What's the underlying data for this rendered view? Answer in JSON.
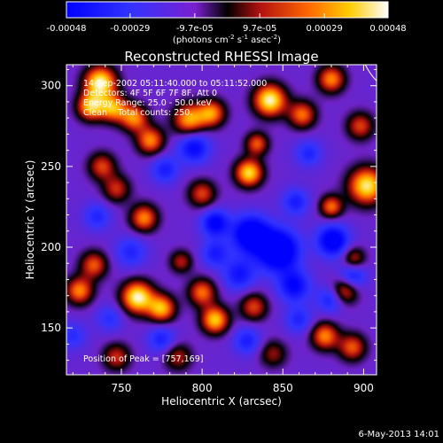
{
  "chart_data": {
    "type": "heatmap",
    "title": "Reconstructed RHESSI Image",
    "xlabel": "Heliocentric X (arcsec)",
    "ylabel": "Heliocentric Y (arcsec)",
    "xlim": [
      716,
      908
    ],
    "ylim": [
      121,
      313
    ],
    "xticks": [
      750,
      800,
      850,
      900
    ],
    "yticks": [
      150,
      200,
      250,
      300
    ],
    "colorbar": {
      "min": -0.00048,
      "max": 0.00048,
      "ticks": [
        -0.00048,
        -0.00029,
        -9.7e-05,
        9.7e-05,
        0.00029,
        0.00048
      ],
      "tick_labels": [
        "-0.00048",
        "-0.00029",
        "-9.7e-05",
        "9.7e-05",
        "0.00029",
        "0.00048"
      ],
      "unit_parts": [
        "(photons cm",
        "-2",
        " s",
        "-1",
        " asec",
        "-2",
        ")"
      ]
    },
    "info_lines": [
      "14-Sep-2002 05:11:40.000 to 05:11:52.000",
      "Detectors: 4F 5F 6F 7F 8F, Att 0",
      "Energy Range: 25.0 - 50.0 keV",
      "Clean    Total counts: 250."
    ],
    "peak_label": "Position of Peak = [757,169]",
    "peak": [
      757,
      169
    ],
    "blobs": [
      {
        "x": 737,
        "y": 302,
        "v": 1.0,
        "s": 7
      },
      {
        "x": 731,
        "y": 287,
        "v": 0.82,
        "s": 6
      },
      {
        "x": 745,
        "y": 286,
        "v": 0.75,
        "s": 6
      },
      {
        "x": 758,
        "y": 280,
        "v": 0.7,
        "s": 6
      },
      {
        "x": 768,
        "y": 266,
        "v": 0.7,
        "s": 6
      },
      {
        "x": 792,
        "y": 279,
        "v": 0.78,
        "s": 7
      },
      {
        "x": 806,
        "y": 283,
        "v": 0.7,
        "s": 6
      },
      {
        "x": 842,
        "y": 291,
        "v": 1.0,
        "s": 7
      },
      {
        "x": 862,
        "y": 282,
        "v": 0.65,
        "s": 6
      },
      {
        "x": 880,
        "y": 304,
        "v": 0.7,
        "s": 6
      },
      {
        "x": 898,
        "y": 275,
        "v": 0.55,
        "s": 6
      },
      {
        "x": 902,
        "y": 238,
        "v": 0.95,
        "s": 8
      },
      {
        "x": 880,
        "y": 225,
        "v": 0.65,
        "s": 5
      },
      {
        "x": 829,
        "y": 246,
        "v": 0.9,
        "s": 6
      },
      {
        "x": 834,
        "y": 264,
        "v": 0.6,
        "s": 5
      },
      {
        "x": 800,
        "y": 233,
        "v": 0.55,
        "s": 6
      },
      {
        "x": 764,
        "y": 218,
        "v": 0.7,
        "s": 6
      },
      {
        "x": 747,
        "y": 236,
        "v": 0.5,
        "s": 6
      },
      {
        "x": 738,
        "y": 250,
        "v": 0.55,
        "s": 6
      },
      {
        "x": 733,
        "y": 189,
        "v": 0.6,
        "s": 6
      },
      {
        "x": 724,
        "y": 173,
        "v": 0.7,
        "s": 6
      },
      {
        "x": 760,
        "y": 169,
        "v": 1.0,
        "s": 7
      },
      {
        "x": 775,
        "y": 162,
        "v": 0.8,
        "s": 6
      },
      {
        "x": 800,
        "y": 172,
        "v": 0.65,
        "s": 6
      },
      {
        "x": 787,
        "y": 191,
        "v": 0.45,
        "s": 5
      },
      {
        "x": 808,
        "y": 155,
        "v": 0.85,
        "s": 6
      },
      {
        "x": 832,
        "y": 163,
        "v": 0.55,
        "s": 6
      },
      {
        "x": 888,
        "y": 173,
        "v": 0.65,
        "s": 6
      },
      {
        "x": 894,
        "y": 193,
        "v": 0.5,
        "s": 5
      },
      {
        "x": 876,
        "y": 145,
        "v": 0.7,
        "s": 6
      },
      {
        "x": 893,
        "y": 138,
        "v": 0.6,
        "s": 6
      },
      {
        "x": 747,
        "y": 132,
        "v": 0.5,
        "s": 6
      },
      {
        "x": 785,
        "y": 132,
        "v": 0.45,
        "s": 6
      },
      {
        "x": 844,
        "y": 134,
        "v": 0.4,
        "s": 6
      },
      {
        "x": 847,
        "y": 198,
        "v": -0.9,
        "s": 9
      },
      {
        "x": 830,
        "y": 208,
        "v": -0.8,
        "s": 8
      },
      {
        "x": 808,
        "y": 215,
        "v": -0.6,
        "s": 6
      },
      {
        "x": 795,
        "y": 262,
        "v": -0.55,
        "s": 7
      },
      {
        "x": 777,
        "y": 248,
        "v": -0.4,
        "s": 6
      },
      {
        "x": 881,
        "y": 204,
        "v": -0.7,
        "s": 7
      },
      {
        "x": 893,
        "y": 182,
        "v": -0.5,
        "s": 6
      },
      {
        "x": 880,
        "y": 168,
        "v": -0.45,
        "s": 6
      },
      {
        "x": 857,
        "y": 176,
        "v": -0.55,
        "s": 7
      },
      {
        "x": 823,
        "y": 183,
        "v": -0.45,
        "s": 7
      },
      {
        "x": 808,
        "y": 196,
        "v": -0.4,
        "s": 6
      },
      {
        "x": 756,
        "y": 197,
        "v": -0.35,
        "s": 7
      },
      {
        "x": 743,
        "y": 156,
        "v": -0.3,
        "s": 6
      },
      {
        "x": 775,
        "y": 143,
        "v": -0.4,
        "s": 6
      },
      {
        "x": 828,
        "y": 142,
        "v": -0.4,
        "s": 6
      },
      {
        "x": 860,
        "y": 155,
        "v": -0.35,
        "s": 6
      },
      {
        "x": 735,
        "y": 219,
        "v": -0.35,
        "s": 6
      },
      {
        "x": 720,
        "y": 145,
        "v": -0.3,
        "s": 6
      },
      {
        "x": 866,
        "y": 258,
        "v": -0.35,
        "s": 6
      },
      {
        "x": 858,
        "y": 228,
        "v": -0.4,
        "s": 6
      }
    ]
  },
  "footer": {
    "timestamp": "6-May-2013 14:01"
  }
}
